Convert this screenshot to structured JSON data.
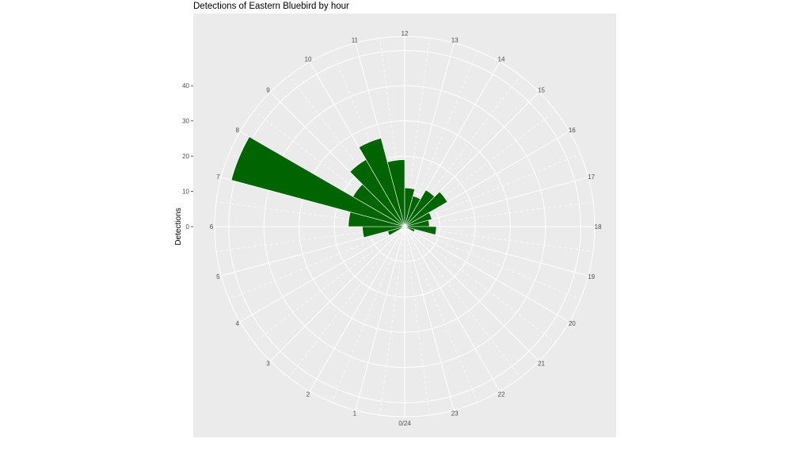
{
  "chart_data": {
    "type": "bar",
    "coord": "polar",
    "title": "Detections of Eastern Bluebird by hour",
    "ylabel": "Detections",
    "xlabel": "",
    "categories": [
      "0",
      "1",
      "2",
      "3",
      "4",
      "5",
      "6",
      "7",
      "8",
      "9",
      "10",
      "11",
      "12",
      "13",
      "14",
      "15",
      "16",
      "17",
      "18",
      "19",
      "20",
      "21",
      "22",
      "23"
    ],
    "values": [
      0,
      0,
      0,
      1,
      5,
      12,
      16,
      51,
      17,
      22,
      26,
      19,
      11,
      9,
      12,
      14,
      8,
      7,
      9,
      3,
      1,
      0,
      0,
      0
    ],
    "hour_labels": [
      "0/24",
      "1",
      "2",
      "3",
      "4",
      "5",
      "6",
      "7",
      "8",
      "9",
      "10",
      "11",
      "12",
      "13",
      "14",
      "15",
      "16",
      "17",
      "18",
      "19",
      "20",
      "21",
      "22",
      "23"
    ],
    "y_ticks": [
      0,
      10,
      20,
      30,
      40
    ],
    "ylim": [
      0,
      54
    ],
    "grid": true,
    "bar_color": "#006400",
    "panel_color": "#EBEBEB"
  }
}
